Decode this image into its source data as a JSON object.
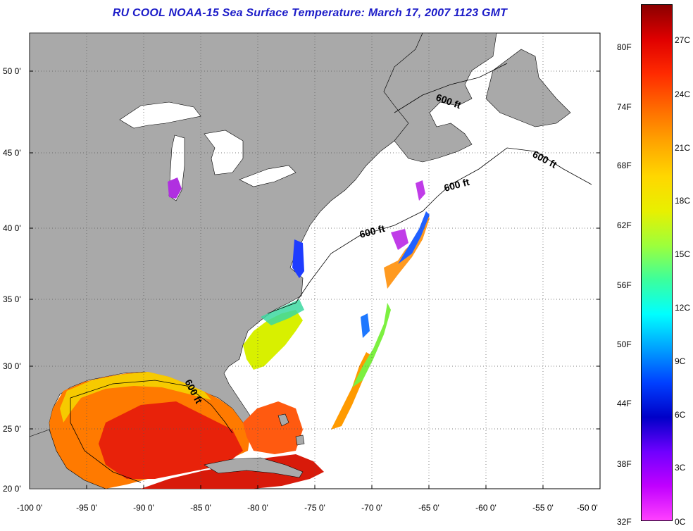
{
  "title": "RU COOL  NOAA-15  Sea Surface Temperature:  March 17, 2007 1123 GMT",
  "latitude_labels": [
    "50 0'",
    "45 0'",
    "40 0'",
    "35 0'",
    "30 0'",
    "25 0'",
    "20 0'"
  ],
  "longitude_labels": [
    "-100 0'",
    "-95 0'",
    "-90 0'",
    "-85 0'",
    "-80 0'",
    "-75 0'",
    "-70 0'",
    "-65 0'",
    "-60 0'",
    "-55 0'",
    "-50 0'"
  ],
  "colorbar": {
    "fahrenheit_labels": [
      "80F",
      "74F",
      "68F",
      "62F",
      "56F",
      "50F",
      "44F",
      "38F",
      "32F"
    ],
    "celsius_labels": [
      "27C",
      "24C",
      "21C",
      "18C",
      "15C",
      "12C",
      "9C",
      "6C",
      "3C",
      "0C"
    ],
    "colors": [
      "#8b0000",
      "#e00000",
      "#ff2a00",
      "#ff6a00",
      "#ffa500",
      "#ffd700",
      "#e8f000",
      "#9cff3c",
      "#3cff9c",
      "#00ffff",
      "#00a0ff",
      "#0040ff",
      "#0000c8",
      "#7000ff",
      "#c000ff",
      "#ff40ff"
    ]
  },
  "isobath_labels": [
    "600 ft",
    "600 ft",
    "600 ft",
    "600 ft",
    "600 ft"
  ],
  "colors": {
    "land": "#a9a9a9",
    "ocean_no_data": "#ffffff",
    "title": "#1c1cc8",
    "grid": "#555555"
  }
}
